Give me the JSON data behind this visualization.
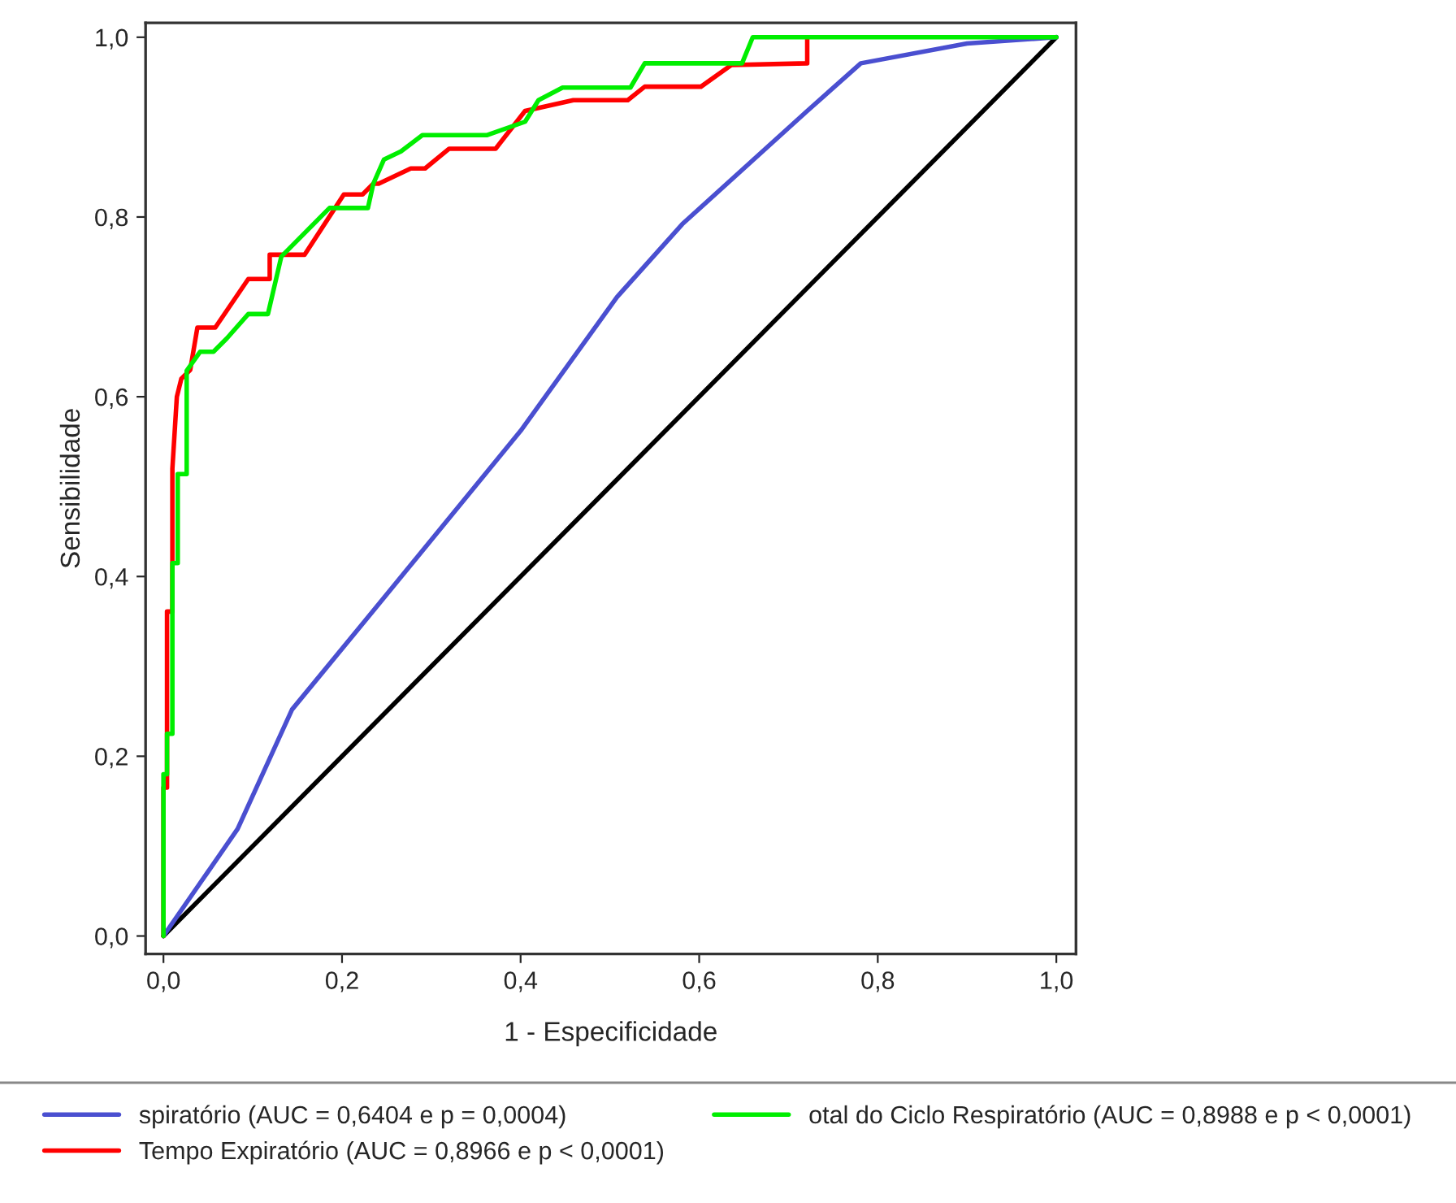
{
  "chart_data": {
    "type": "line",
    "xlabel": "1 - Especificidade",
    "ylabel": "Sensibilidade",
    "xlim": [
      -0.02,
      1.022
    ],
    "ylim": [
      -0.02,
      1.016
    ],
    "xticks": [
      {
        "value": 0,
        "label": "0,0"
      },
      {
        "value": 0.2,
        "label": "0,2"
      },
      {
        "value": 0.4,
        "label": "0,4"
      },
      {
        "value": 0.6,
        "label": "0,6"
      },
      {
        "value": 0.8,
        "label": "0,8"
      },
      {
        "value": 1,
        "label": "1,0"
      }
    ],
    "yticks": [
      {
        "value": 0,
        "label": "0,0"
      },
      {
        "value": 0.2,
        "label": "0,2"
      },
      {
        "value": 0.4,
        "label": "0,4"
      },
      {
        "value": 0.6,
        "label": "0,6"
      },
      {
        "value": 0.8,
        "label": "0,8"
      },
      {
        "value": 1,
        "label": "1,0"
      }
    ],
    "grid": false,
    "legend": "bottom",
    "marker": "none",
    "line_style": "solid",
    "series": [
      {
        "color": "#000000",
        "x": [
          0,
          1
        ],
        "values": [
          0,
          1
        ]
      },
      {
        "name": "spiratório (AUC = 0,6404 e p = 0,0004)",
        "color": "#4a4fd0",
        "x": [
          0,
          0.083,
          0.144,
          0.25,
          0.4,
          0.508,
          0.581,
          0.721,
          0.781,
          0.9,
          1
        ],
        "values": [
          0,
          0.119,
          0.252,
          0.38,
          0.562,
          0.711,
          0.792,
          0.918,
          0.971,
          0.993,
          1
        ]
      },
      {
        "name": "Tempo Expiratório (AUC = 0,8966 e p < 0,0001)",
        "color": "#ff0000",
        "x": [
          0,
          0,
          0.004,
          0.004,
          0.004,
          0.01,
          0.01,
          0.015,
          0.02,
          0.03,
          0.038,
          0.058,
          0.095,
          0.119,
          0.119,
          0.158,
          0.202,
          0.223,
          0.235,
          0.241,
          0.277,
          0.293,
          0.32,
          0.372,
          0.405,
          0.459,
          0.52,
          0.539,
          0.602,
          0.636,
          0.721,
          0.721
        ],
        "values": [
          0,
          0.165,
          0.165,
          0.33,
          0.361,
          0.361,
          0.52,
          0.6,
          0.62,
          0.63,
          0.677,
          0.677,
          0.731,
          0.731,
          0.758,
          0.758,
          0.825,
          0.825,
          0.837,
          0.837,
          0.854,
          0.854,
          0.876,
          0.876,
          0.918,
          0.93,
          0.93,
          0.945,
          0.945,
          0.969,
          0.971,
          1
        ]
      },
      {
        "name": "otal do Ciclo Respiratório (AUC = 0,8988 e p < 0,0001)",
        "color": "#00ee00",
        "x": [
          0,
          0,
          0.004,
          0.004,
          0.01,
          0.01,
          0.016,
          0.016,
          0.026,
          0.026,
          0.041,
          0.056,
          0.071,
          0.095,
          0.117,
          0.132,
          0.186,
          0.229,
          0.235,
          0.247,
          0.266,
          0.29,
          0.362,
          0.405,
          0.42,
          0.447,
          0.523,
          0.539,
          0.648,
          0.66,
          1
        ],
        "values": [
          0,
          0.18,
          0.18,
          0.225,
          0.225,
          0.415,
          0.415,
          0.514,
          0.514,
          0.629,
          0.65,
          0.65,
          0.665,
          0.692,
          0.692,
          0.756,
          0.81,
          0.81,
          0.837,
          0.864,
          0.873,
          0.891,
          0.891,
          0.906,
          0.93,
          0.944,
          0.944,
          0.971,
          0.971,
          1,
          1
        ]
      }
    ]
  }
}
